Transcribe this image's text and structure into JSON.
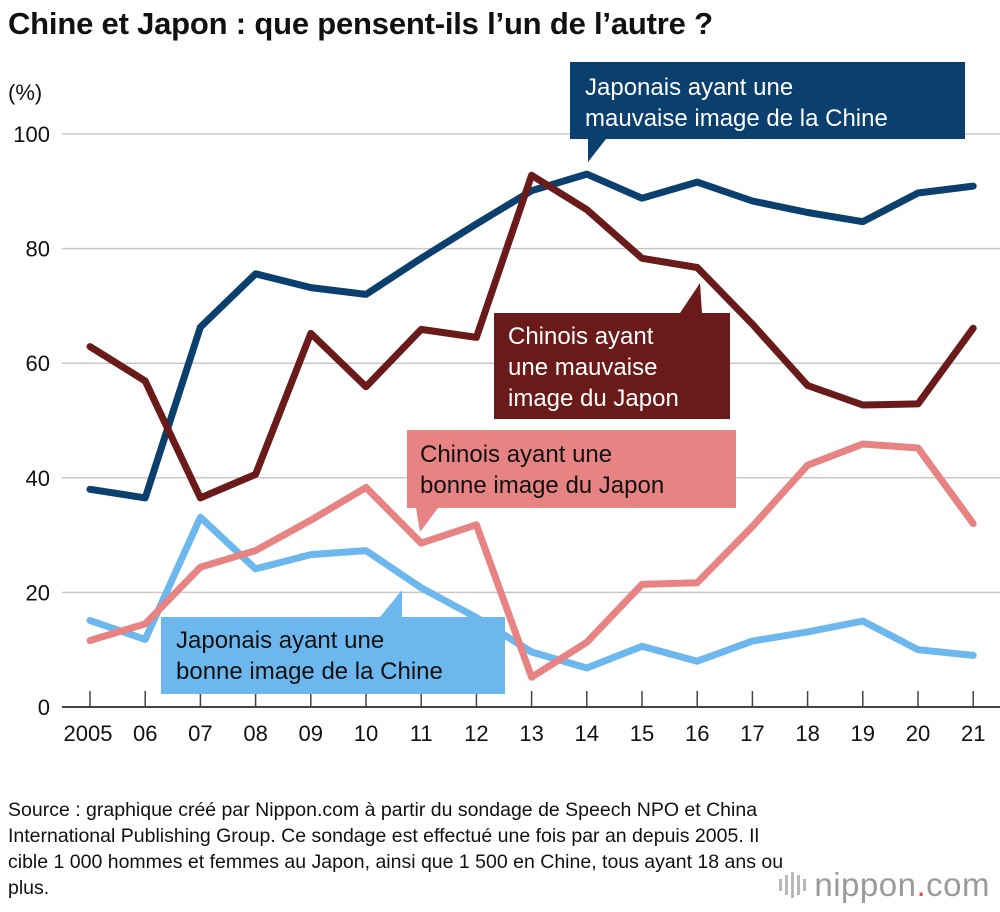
{
  "title": "Chine et Japon : que pensent-ils l’un de l’autre ?",
  "source": "Source : graphique créé par Nippon.com à partir du sondage de Speech NPO et China International Publishing Group. Ce sondage est effectué une fois par an depuis 2005. Il cible 1 000 hommes et femmes au Japon, ainsi que 1 500 en Chine, tous ayant 18 ans ou plus.",
  "brand": {
    "name": "nippon",
    "dot": ".",
    "suffix": "com"
  },
  "chart_data": {
    "type": "line",
    "ylabel": "(%)",
    "ylim": [
      0,
      100
    ],
    "yticks": [
      0,
      20,
      40,
      60,
      80,
      100
    ],
    "grid": true,
    "categories": [
      "2005",
      "06",
      "07",
      "08",
      "09",
      "10",
      "11",
      "12",
      "13",
      "14",
      "15",
      "16",
      "17",
      "18",
      "19",
      "20",
      "21"
    ],
    "series": [
      {
        "name": "Japonais ayant une mauvaise image de la Chine",
        "color": "#0a3f6e",
        "text_color": "#ffffff",
        "values": [
          38,
          36.5,
          66.3,
          75.6,
          73.2,
          72,
          78.3,
          84.3,
          90.1,
          93,
          88.8,
          91.6,
          88.3,
          86.3,
          84.7,
          89.7,
          90.9
        ]
      },
      {
        "name": "Chinois ayant une mauvaise image du Japon",
        "color": "#6b1a1a",
        "text_color": "#ffffff",
        "values": [
          62.9,
          56.9,
          36.5,
          40.6,
          65.2,
          55.9,
          65.9,
          64.5,
          92.8,
          86.8,
          78.3,
          76.7,
          66.8,
          56.1,
          52.7,
          52.9,
          66.1
        ]
      },
      {
        "name": "Chinois ayant une bonne image du Japon",
        "color": "#e88383",
        "text_color": "#111111",
        "values": [
          11.6,
          14.5,
          24.4,
          27.3,
          32.6,
          38.3,
          28.6,
          31.8,
          5.2,
          11.3,
          21.4,
          21.7,
          31.5,
          42.2,
          45.9,
          45.2,
          32
        ]
      },
      {
        "name": "Japonais ayant une bonne image de la Chine",
        "color": "#6cb8ee",
        "text_color": "#111111",
        "values": [
          15.1,
          11.8,
          33.1,
          24.1,
          26.6,
          27.3,
          20.8,
          15.6,
          9.6,
          6.8,
          10.6,
          8,
          11.5,
          13.1,
          15,
          10,
          9
        ]
      }
    ],
    "callouts": [
      {
        "series": 0,
        "lines": [
          "Japonais ayant une",
          "mauvaise image de la Chine"
        ]
      },
      {
        "series": 1,
        "lines": [
          "Chinois ayant",
          "une mauvaise",
          "image du Japon"
        ]
      },
      {
        "series": 2,
        "lines": [
          "Chinois ayant une",
          "bonne image du Japon"
        ]
      },
      {
        "series": 3,
        "lines": [
          "Japonais ayant une",
          "bonne image de la Chine"
        ]
      }
    ]
  }
}
